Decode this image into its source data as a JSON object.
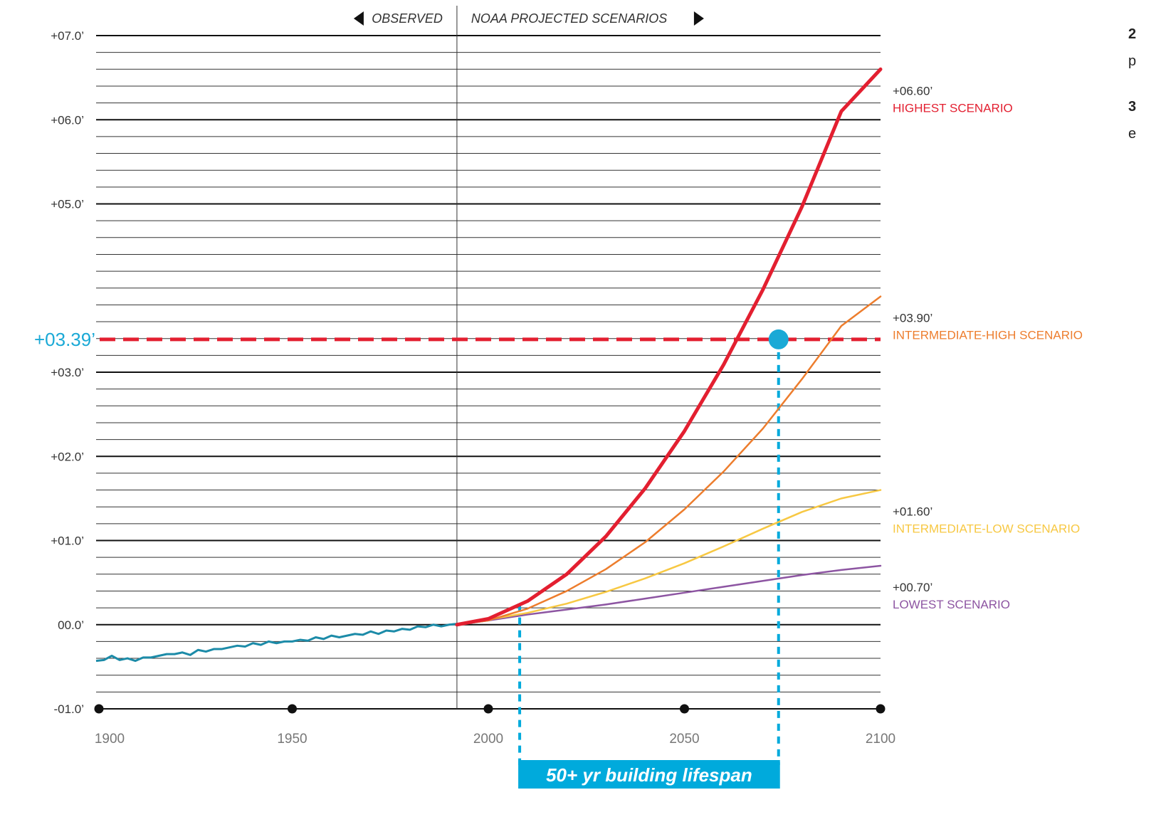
{
  "chart_data": {
    "type": "line",
    "xlim": [
      1900,
      2100
    ],
    "ylim": [
      -1.0,
      7.0
    ],
    "x_ticks": [
      {
        "value": 1900,
        "label": "1900"
      },
      {
        "value": 1950,
        "label": "1950"
      },
      {
        "value": 2000,
        "label": "2000"
      },
      {
        "value": 2050,
        "label": "2050"
      },
      {
        "value": 2100,
        "label": "2100"
      }
    ],
    "y_ticks": [
      {
        "value": 7,
        "label": "+07.0’"
      },
      {
        "value": 6,
        "label": "+06.0’"
      },
      {
        "value": 5,
        "label": "+05.0’"
      },
      {
        "value": 3,
        "label": "+03.0’"
      },
      {
        "value": 2,
        "label": "+02.0’"
      },
      {
        "value": 1,
        "label": "+01.0’"
      },
      {
        "value": 0,
        "label": "00.0’"
      },
      {
        "value": -1,
        "label": "-01.0’"
      }
    ],
    "grid": true,
    "minor_grid_step": 0.2,
    "period_labels": {
      "split_x": 1992,
      "observed": "OBSERVED",
      "projected": "NOAA PROJECTED SCENARIOS"
    },
    "observed_series": {
      "color": "#1c8ba8",
      "x": [
        1900,
        1902,
        1904,
        1906,
        1908,
        1910,
        1912,
        1914,
        1916,
        1918,
        1920,
        1922,
        1924,
        1926,
        1928,
        1930,
        1932,
        1934,
        1936,
        1938,
        1940,
        1942,
        1944,
        1946,
        1948,
        1950,
        1952,
        1954,
        1956,
        1958,
        1960,
        1962,
        1964,
        1966,
        1968,
        1970,
        1972,
        1974,
        1976,
        1978,
        1980,
        1982,
        1984,
        1986,
        1988,
        1990,
        1992
      ],
      "y": [
        -0.43,
        -0.42,
        -0.37,
        -0.42,
        -0.4,
        -0.43,
        -0.39,
        -0.39,
        -0.37,
        -0.35,
        -0.35,
        -0.33,
        -0.36,
        -0.3,
        -0.32,
        -0.29,
        -0.29,
        -0.27,
        -0.25,
        -0.26,
        -0.22,
        -0.24,
        -0.2,
        -0.22,
        -0.2,
        -0.2,
        -0.18,
        -0.19,
        -0.15,
        -0.17,
        -0.13,
        -0.15,
        -0.13,
        -0.11,
        -0.12,
        -0.08,
        -0.11,
        -0.07,
        -0.08,
        -0.05,
        -0.06,
        -0.02,
        -0.03,
        0.0,
        -0.02,
        0.0,
        0.01
      ]
    },
    "series": [
      {
        "name": "HIGHEST SCENARIO",
        "end_label": "+06.60’",
        "color": "#e31f30",
        "end_value": 6.6,
        "x": [
          1992,
          2000,
          2010,
          2020,
          2030,
          2040,
          2050,
          2060,
          2070,
          2080,
          2090,
          2100
        ],
        "y": [
          0.0,
          0.07,
          0.28,
          0.6,
          1.05,
          1.62,
          2.3,
          3.09,
          3.98,
          4.97,
          6.1,
          6.6
        ]
      },
      {
        "name": "INTERMEDIATE-HIGH SCENARIO",
        "end_label": "+03.90’",
        "color": "#ed7d2d",
        "end_value": 3.9,
        "x": [
          1992,
          2000,
          2010,
          2020,
          2030,
          2040,
          2050,
          2060,
          2070,
          2080,
          2090,
          2100
        ],
        "y": [
          0.0,
          0.05,
          0.19,
          0.4,
          0.66,
          0.98,
          1.37,
          1.82,
          2.33,
          2.92,
          3.55,
          3.9
        ]
      },
      {
        "name": "INTERMEDIATE-LOW SCENARIO",
        "end_label": "+01.60’",
        "color": "#f7c843",
        "end_value": 1.6,
        "x": [
          1992,
          2000,
          2010,
          2020,
          2030,
          2040,
          2050,
          2060,
          2070,
          2080,
          2090,
          2100
        ],
        "y": [
          0.0,
          0.06,
          0.14,
          0.25,
          0.39,
          0.55,
          0.73,
          0.93,
          1.14,
          1.34,
          1.5,
          1.6
        ]
      },
      {
        "name": "LOWEST SCENARIO",
        "end_label": "+00.70’",
        "color": "#8d55a2",
        "end_value": 0.7,
        "x": [
          1992,
          2000,
          2010,
          2020,
          2030,
          2040,
          2050,
          2060,
          2070,
          2080,
          2090,
          2100
        ],
        "y": [
          0.0,
          0.05,
          0.12,
          0.18,
          0.24,
          0.31,
          0.38,
          0.45,
          0.52,
          0.59,
          0.65,
          0.7
        ]
      }
    ],
    "threshold": {
      "value": 3.39,
      "label": "+03.39’",
      "line_color": "#e31f30",
      "label_color": "#1aa9d6"
    },
    "intersection": {
      "x": 2074,
      "y": 3.39,
      "color": "#1aa9d6"
    },
    "lifespan": {
      "start_x": 2008,
      "end_x": 2074,
      "label": "50+ yr building lifespan",
      "color": "#00aadc"
    }
  },
  "side_notes": [
    {
      "lead": "2",
      "text": "p"
    },
    {
      "lead": "3",
      "text": "e"
    }
  ]
}
